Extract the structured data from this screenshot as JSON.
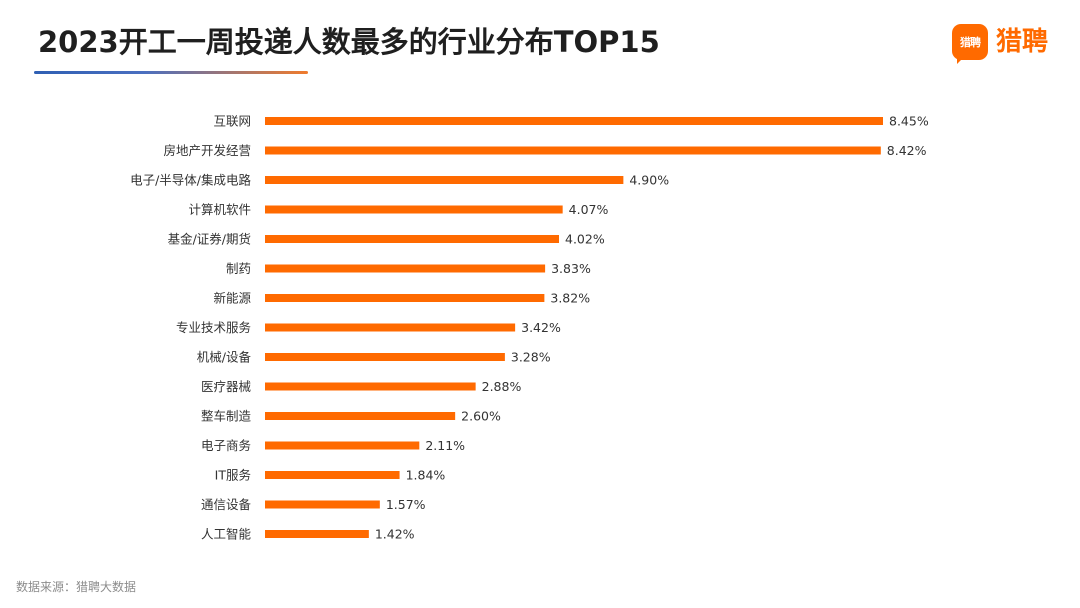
{
  "title": "2023开工一周投递人数最多的行业分布TOP15",
  "logo": {
    "badge_text": "猎聘",
    "text": "猎聘"
  },
  "source": "数据来源：猎聘大数据",
  "colors": {
    "bar": "#ff6a00",
    "title_line_start": "#2f5fb3",
    "title_line_end": "#f07b2c"
  },
  "chart_data": {
    "type": "bar",
    "orientation": "horizontal",
    "title": "2023开工一周投递人数最多的行业分布TOP15",
    "categories": [
      "互联网",
      "房地产开发经营",
      "电子/半导体/集成电路",
      "计算机软件",
      "基金/证券/期货",
      "制药",
      "新能源",
      "专业技术服务",
      "机械/设备",
      "医疗器械",
      "整车制造",
      "电子商务",
      "IT服务",
      "通信设备",
      "人工智能"
    ],
    "values": [
      8.45,
      8.42,
      4.9,
      4.07,
      4.02,
      3.83,
      3.82,
      3.42,
      3.28,
      2.88,
      2.6,
      2.11,
      1.84,
      1.57,
      1.42
    ],
    "value_labels": [
      "8.45%",
      "8.42%",
      "4.90%",
      "4.07%",
      "4.02%",
      "3.83%",
      "3.82%",
      "3.42%",
      "3.28%",
      "2.88%",
      "2.60%",
      "2.11%",
      "1.84%",
      "1.57%",
      "1.42%"
    ],
    "xlim": [
      0,
      8.45
    ],
    "unit": "%",
    "grid": false,
    "legend": "none"
  }
}
